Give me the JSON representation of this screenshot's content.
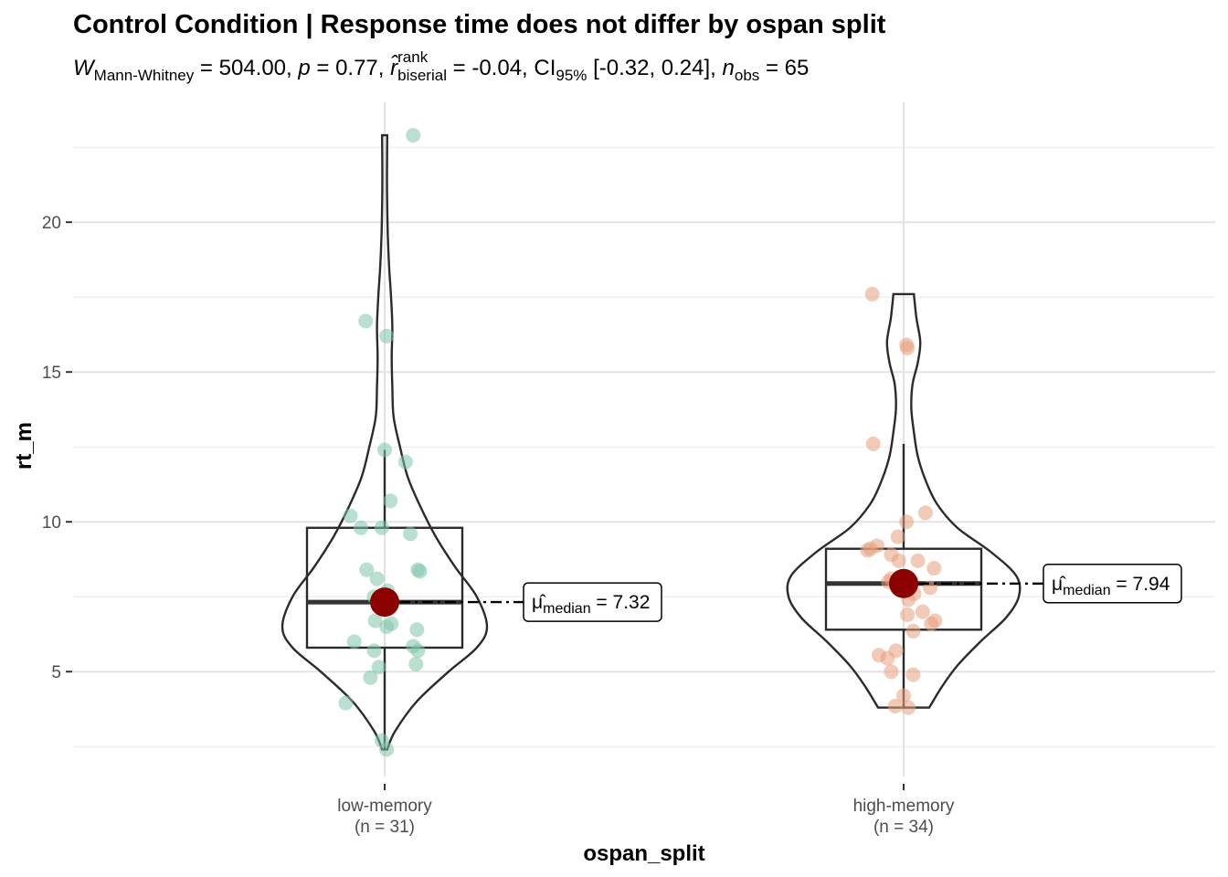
{
  "chart_data": {
    "type": "violin-box-scatter",
    "title": "Control Condition | Response time does not differ by ospan split",
    "subtitle": {
      "W_label": "W",
      "W_sub": "Mann-Whitney",
      "W_value": " = 504.00, ",
      "p_label": "p",
      "p_value": " = 0.77, ",
      "r_label": "r̂",
      "r_sup": "rank",
      "r_sub": "biserial",
      "r_value": " = -0.04, CI",
      "ci_sub": "95%",
      "ci_value": " [-0.32, 0.24], ",
      "n_label": "n",
      "n_sub": "obs",
      "n_value": " = 65"
    },
    "xlabel": "ospan_split",
    "ylabel": "rt_m",
    "ylim": [
      1.5,
      24.0
    ],
    "yticks": [
      5,
      10,
      15,
      20
    ],
    "grid": true,
    "groups": [
      {
        "category": "low-memory",
        "n_label": "(n = 31)",
        "color": "#7fc4aa",
        "median": 7.32,
        "q1": 5.8,
        "q3": 9.8,
        "whisker_low": 2.4,
        "whisker_high": 12.4,
        "min": 2.4,
        "max": 22.9,
        "median_label_prefix": "μ̂",
        "median_label_sub": "median",
        "median_label_value": " = 7.32",
        "violin": [
          [
            2.4,
            0.02
          ],
          [
            3.0,
            0.08
          ],
          [
            4.0,
            0.25
          ],
          [
            5.0,
            0.5
          ],
          [
            5.8,
            0.72
          ],
          [
            6.5,
            0.8
          ],
          [
            7.5,
            0.72
          ],
          [
            8.5,
            0.55
          ],
          [
            9.5,
            0.4
          ],
          [
            10.5,
            0.28
          ],
          [
            11.5,
            0.18
          ],
          [
            12.5,
            0.12
          ],
          [
            13.5,
            0.07
          ],
          [
            14.5,
            0.06
          ],
          [
            15.5,
            0.055
          ],
          [
            16.5,
            0.06
          ],
          [
            17.5,
            0.05
          ],
          [
            18.5,
            0.035
          ],
          [
            19.5,
            0.025
          ],
          [
            20.5,
            0.02
          ],
          [
            21.5,
            0.018
          ],
          [
            22.9,
            0.02
          ]
        ],
        "points": [
          [
            0.3,
            22.9
          ],
          [
            -0.2,
            16.7
          ],
          [
            0.02,
            16.2
          ],
          [
            0.0,
            12.4
          ],
          [
            0.22,
            12.0
          ],
          [
            0.06,
            10.7
          ],
          [
            -0.36,
            10.2
          ],
          [
            -0.25,
            9.8
          ],
          [
            -0.03,
            9.8
          ],
          [
            0.27,
            9.6
          ],
          [
            -0.19,
            8.4
          ],
          [
            0.35,
            8.4
          ],
          [
            0.37,
            8.35
          ],
          [
            -0.08,
            8.1
          ],
          [
            0.03,
            7.7
          ],
          [
            -0.11,
            7.5
          ],
          [
            0.0,
            7.3
          ],
          [
            -0.1,
            6.7
          ],
          [
            0.07,
            6.6
          ],
          [
            0.02,
            6.5
          ],
          [
            0.34,
            6.4
          ],
          [
            -0.32,
            6.0
          ],
          [
            0.3,
            5.85
          ],
          [
            0.35,
            5.7
          ],
          [
            -0.11,
            5.7
          ],
          [
            0.33,
            5.25
          ],
          [
            -0.06,
            5.15
          ],
          [
            -0.15,
            4.8
          ],
          [
            -0.41,
            3.95
          ],
          [
            -0.03,
            2.7
          ],
          [
            0.02,
            2.4
          ]
        ]
      },
      {
        "category": "high-memory",
        "n_label": "(n = 34)",
        "color": "#e8a07e",
        "median": 7.94,
        "q1": 6.4,
        "q3": 9.1,
        "whisker_low": 3.8,
        "whisker_high": 12.6,
        "min": 3.8,
        "max": 17.6,
        "median_label_prefix": "μ̂",
        "median_label_sub": "median",
        "median_label_value": " = 7.94",
        "violin": [
          [
            3.8,
            0.2
          ],
          [
            4.5,
            0.3
          ],
          [
            5.2,
            0.42
          ],
          [
            6.0,
            0.6
          ],
          [
            6.8,
            0.8
          ],
          [
            7.5,
            0.9
          ],
          [
            8.2,
            0.88
          ],
          [
            9.0,
            0.68
          ],
          [
            9.8,
            0.42
          ],
          [
            10.6,
            0.26
          ],
          [
            11.4,
            0.17
          ],
          [
            12.2,
            0.11
          ],
          [
            13.0,
            0.08
          ],
          [
            13.8,
            0.06
          ],
          [
            14.6,
            0.07
          ],
          [
            15.3,
            0.11
          ],
          [
            16.0,
            0.13
          ],
          [
            16.8,
            0.1
          ],
          [
            17.6,
            0.08
          ]
        ],
        "points": [
          [
            -0.33,
            17.6
          ],
          [
            0.03,
            15.9
          ],
          [
            0.04,
            15.8
          ],
          [
            -0.32,
            12.6
          ],
          [
            0.23,
            10.3
          ],
          [
            0.03,
            10.0
          ],
          [
            -0.06,
            9.5
          ],
          [
            -0.28,
            9.2
          ],
          [
            -0.35,
            9.1
          ],
          [
            -0.38,
            9.05
          ],
          [
            -0.13,
            8.9
          ],
          [
            -0.05,
            8.7
          ],
          [
            0.15,
            8.7
          ],
          [
            0.32,
            8.45
          ],
          [
            -0.13,
            8.1
          ],
          [
            -0.16,
            8.0
          ],
          [
            0.0,
            7.94
          ],
          [
            0.07,
            7.8
          ],
          [
            0.28,
            7.8
          ],
          [
            0.11,
            7.6
          ],
          [
            0.05,
            7.4
          ],
          [
            0.2,
            7.0
          ],
          [
            0.33,
            6.7
          ],
          [
            0.29,
            6.6
          ],
          [
            0.04,
            6.9
          ],
          [
            0.1,
            6.35
          ],
          [
            -0.26,
            5.55
          ],
          [
            -0.17,
            5.45
          ],
          [
            -0.08,
            5.7
          ],
          [
            0.1,
            4.9
          ],
          [
            -0.13,
            5.0
          ],
          [
            0.0,
            4.2
          ],
          [
            -0.09,
            3.85
          ],
          [
            0.05,
            3.8
          ]
        ]
      }
    ],
    "mean_point_color": "#8b0000"
  }
}
